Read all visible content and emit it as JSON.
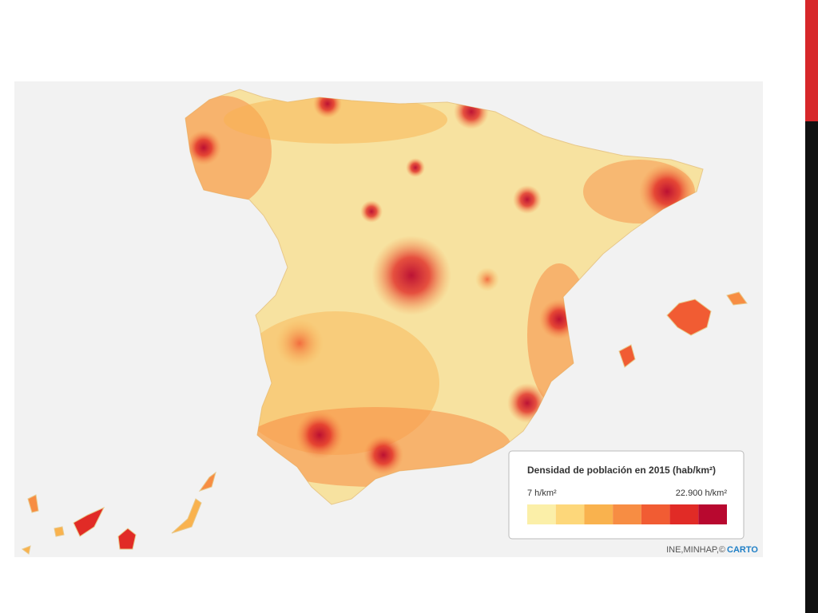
{
  "legend": {
    "title": "Densidad de población en 2015 (hab/km²)",
    "min_label": "7 h/km²",
    "max_label": "22.900 h/km²",
    "colors": [
      "#fbefa8",
      "#fdd77a",
      "#f9b24e",
      "#f78d43",
      "#f15c33",
      "#e12b26",
      "#b8082f"
    ]
  },
  "attribution": {
    "source": "INE,MINHAP,©",
    "provider": "CARTO"
  }
}
